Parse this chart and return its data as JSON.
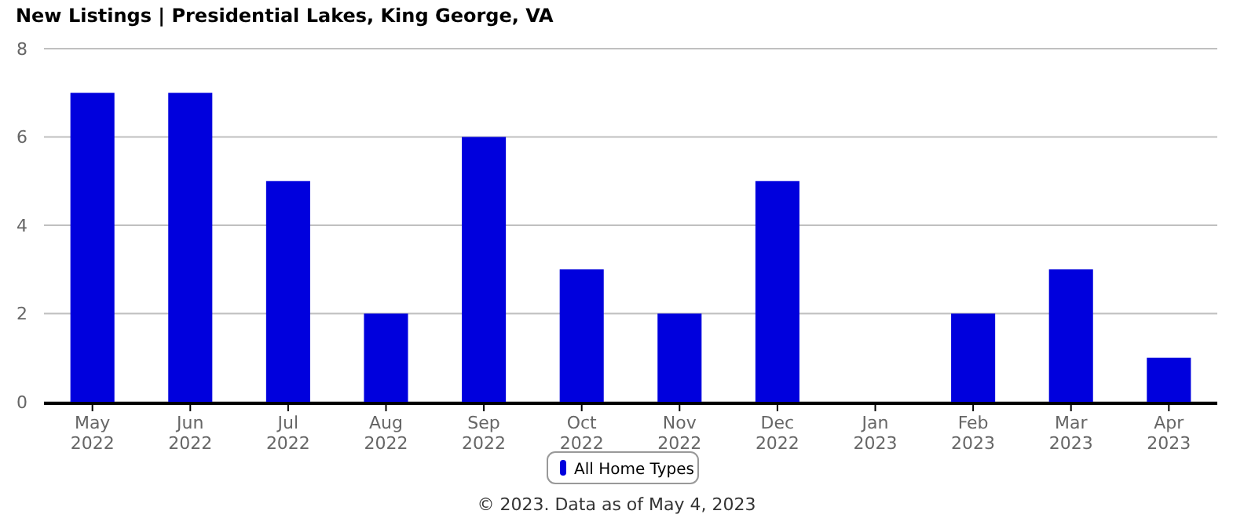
{
  "chart_data": {
    "type": "bar",
    "title": "New Listings | Presidential Lakes, King George, VA",
    "categories": [
      "May\n2022",
      "Jun\n2022",
      "Jul\n2022",
      "Aug\n2022",
      "Sep\n2022",
      "Oct\n2022",
      "Nov\n2022",
      "Dec\n2022",
      "Jan\n2023",
      "Feb\n2023",
      "Mar\n2023",
      "Apr\n2023"
    ],
    "series": [
      {
        "name": "All Home Types",
        "color": "#0000dd",
        "values": [
          7,
          7,
          5,
          2,
          6,
          3,
          2,
          5,
          0,
          2,
          3,
          1
        ]
      }
    ],
    "ylim": [
      0,
      8
    ],
    "yticks": [
      0,
      2,
      4,
      6,
      8
    ],
    "grid": "y",
    "legend": "bottom",
    "annotations": [
      "© 2023. Data as of May 4, 2023"
    ]
  }
}
